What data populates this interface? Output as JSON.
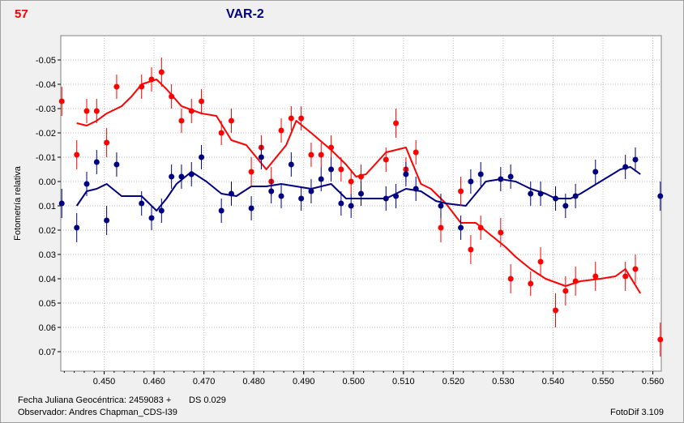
{
  "header": {
    "number": "57",
    "title": "VAR-2"
  },
  "footer": {
    "date_label": "Fecha Juliana Geocéntrica: 2459083 +",
    "ds_label": "DS 0.029",
    "observer_label": "Observador: Andres Chapman_CDS-I39",
    "software": "FotoDif 3.109"
  },
  "chart_data": {
    "type": "scatter",
    "title": "VAR-2",
    "xlabel": "",
    "ylabel": "Fotometría relativa",
    "xlim": [
      0.4413,
      0.5617
    ],
    "ylim": [
      0.078,
      -0.06
    ],
    "y_inverted": true,
    "grid": true,
    "x_ticks": [
      0.45,
      0.46,
      0.47,
      0.48,
      0.49,
      0.5,
      0.51,
      0.52,
      0.53,
      0.54,
      0.55,
      0.56
    ],
    "x_tick_labels": [
      "0.450",
      "0.460",
      "0.470",
      "0.480",
      "0.490",
      "0.500",
      "0.510",
      "0.520",
      "0.530",
      "0.540",
      "0.550",
      "0.560"
    ],
    "y_ticks": [
      -0.05,
      -0.04,
      -0.03,
      -0.02,
      -0.01,
      0.0,
      0.01,
      0.02,
      0.03,
      0.04,
      0.05,
      0.06,
      0.07
    ],
    "y_tick_labels": [
      "-0.05",
      "-0.04",
      "-0.03",
      "-0.02",
      "-0.01",
      "0.00",
      "0.01",
      "0.02",
      "0.03",
      "0.04",
      "0.05",
      "0.06",
      "0.07"
    ],
    "series": [
      {
        "color": "#ff0000",
        "points": [
          [
            0.4415,
            -0.033
          ],
          [
            0.4445,
            -0.011
          ],
          [
            0.4465,
            -0.029
          ],
          [
            0.4485,
            -0.029
          ],
          [
            0.4505,
            -0.016
          ],
          [
            0.4525,
            -0.039
          ],
          [
            0.4575,
            -0.039
          ],
          [
            0.4595,
            -0.042
          ],
          [
            0.4615,
            -0.045
          ],
          [
            0.4635,
            -0.035
          ],
          [
            0.4655,
            -0.025
          ],
          [
            0.4675,
            -0.029
          ],
          [
            0.4695,
            -0.033
          ],
          [
            0.4735,
            -0.02
          ],
          [
            0.4755,
            -0.025
          ],
          [
            0.4795,
            -0.004
          ],
          [
            0.4815,
            -0.014
          ],
          [
            0.4835,
            0.0
          ],
          [
            0.4855,
            -0.021
          ],
          [
            0.4875,
            -0.026
          ],
          [
            0.4895,
            -0.026
          ],
          [
            0.4915,
            -0.011
          ],
          [
            0.4935,
            -0.011
          ],
          [
            0.4955,
            -0.014
          ],
          [
            0.4975,
            -0.005
          ],
          [
            0.4995,
            0.0
          ],
          [
            0.5015,
            -0.002
          ],
          [
            0.5065,
            -0.009
          ],
          [
            0.5085,
            -0.024
          ],
          [
            0.5105,
            -0.005
          ],
          [
            0.5125,
            -0.012
          ],
          [
            0.5175,
            0.019
          ],
          [
            0.5215,
            0.004
          ],
          [
            0.5235,
            0.028
          ],
          [
            0.5255,
            0.019
          ],
          [
            0.5295,
            0.021
          ],
          [
            0.5315,
            0.04
          ],
          [
            0.5355,
            0.042
          ],
          [
            0.5375,
            0.033
          ],
          [
            0.5405,
            0.053
          ],
          [
            0.5425,
            0.045
          ],
          [
            0.5445,
            0.041
          ],
          [
            0.5485,
            0.039
          ],
          [
            0.5545,
            0.039
          ],
          [
            0.5565,
            0.036
          ],
          [
            0.5615,
            0.065
          ]
        ],
        "errors": [
          0.006,
          0.006,
          0.005,
          0.005,
          0.006,
          0.005,
          0.005,
          0.005,
          0.006,
          0.005,
          0.005,
          0.005,
          0.005,
          0.005,
          0.005,
          0.006,
          0.005,
          0.006,
          0.005,
          0.005,
          0.005,
          0.005,
          0.005,
          0.005,
          0.005,
          0.005,
          0.005,
          0.005,
          0.006,
          0.005,
          0.005,
          0.006,
          0.006,
          0.006,
          0.005,
          0.006,
          0.006,
          0.005,
          0.006,
          0.007,
          0.006,
          0.006,
          0.006,
          0.006,
          0.006,
          0.007
        ],
        "line": [
          [
            0.4445,
            -0.024
          ],
          [
            0.4465,
            -0.023
          ],
          [
            0.4485,
            -0.025
          ],
          [
            0.4505,
            -0.028
          ],
          [
            0.4535,
            -0.031
          ],
          [
            0.4555,
            -0.035
          ],
          [
            0.4575,
            -0.04
          ],
          [
            0.4605,
            -0.042
          ],
          [
            0.4625,
            -0.038
          ],
          [
            0.4655,
            -0.031
          ],
          [
            0.4695,
            -0.028
          ],
          [
            0.4725,
            -0.027
          ],
          [
            0.4755,
            -0.017
          ],
          [
            0.4785,
            -0.015
          ],
          [
            0.4825,
            -0.005
          ],
          [
            0.4865,
            -0.015
          ],
          [
            0.4885,
            -0.025
          ],
          [
            0.4915,
            -0.02
          ],
          [
            0.4955,
            -0.013
          ],
          [
            0.4985,
            -0.007
          ],
          [
            0.5005,
            -0.002
          ],
          [
            0.5025,
            -0.003
          ],
          [
            0.5065,
            -0.012
          ],
          [
            0.5105,
            -0.014
          ],
          [
            0.5135,
            0.001
          ],
          [
            0.5155,
            0.003
          ],
          [
            0.5185,
            0.009
          ],
          [
            0.5215,
            0.017
          ],
          [
            0.5245,
            0.017
          ],
          [
            0.5275,
            0.022
          ],
          [
            0.5305,
            0.027
          ],
          [
            0.5325,
            0.031
          ],
          [
            0.5355,
            0.036
          ],
          [
            0.5385,
            0.04
          ],
          [
            0.5425,
            0.043
          ],
          [
            0.5455,
            0.041
          ],
          [
            0.5495,
            0.04
          ],
          [
            0.5525,
            0.039
          ],
          [
            0.5545,
            0.036
          ],
          [
            0.5575,
            0.046
          ]
        ]
      },
      {
        "color": "#000080",
        "points": [
          [
            0.4415,
            0.009
          ],
          [
            0.4445,
            0.019
          ],
          [
            0.4465,
            0.001
          ],
          [
            0.4485,
            -0.008
          ],
          [
            0.4505,
            0.016
          ],
          [
            0.4525,
            -0.007
          ],
          [
            0.4575,
            0.009
          ],
          [
            0.4595,
            0.015
          ],
          [
            0.4615,
            0.012
          ],
          [
            0.4635,
            -0.002
          ],
          [
            0.4655,
            -0.002
          ],
          [
            0.4675,
            -0.003
          ],
          [
            0.4695,
            -0.01
          ],
          [
            0.4735,
            0.012
          ],
          [
            0.4755,
            0.005
          ],
          [
            0.4795,
            0.011
          ],
          [
            0.4815,
            -0.01
          ],
          [
            0.4835,
            0.004
          ],
          [
            0.4855,
            0.006
          ],
          [
            0.4875,
            -0.007
          ],
          [
            0.4895,
            0.007
          ],
          [
            0.4915,
            0.004
          ],
          [
            0.4935,
            -0.001
          ],
          [
            0.4955,
            -0.005
          ],
          [
            0.4975,
            0.009
          ],
          [
            0.4995,
            0.01
          ],
          [
            0.5015,
            0.005
          ],
          [
            0.5065,
            0.007
          ],
          [
            0.5085,
            0.006
          ],
          [
            0.5105,
            -0.003
          ],
          [
            0.5125,
            0.003
          ],
          [
            0.5175,
            0.01
          ],
          [
            0.5215,
            0.019
          ],
          [
            0.5235,
            0.0
          ],
          [
            0.5255,
            -0.003
          ],
          [
            0.5295,
            -0.001
          ],
          [
            0.5315,
            -0.002
          ],
          [
            0.5355,
            0.005
          ],
          [
            0.5375,
            0.005
          ],
          [
            0.5405,
            0.007
          ],
          [
            0.5425,
            0.01
          ],
          [
            0.5445,
            0.006
          ],
          [
            0.5485,
            -0.004
          ],
          [
            0.5545,
            -0.006
          ],
          [
            0.5565,
            -0.009
          ],
          [
            0.5615,
            0.006
          ]
        ],
        "errors": [
          0.006,
          0.006,
          0.005,
          0.005,
          0.006,
          0.005,
          0.005,
          0.005,
          0.005,
          0.005,
          0.005,
          0.005,
          0.005,
          0.005,
          0.005,
          0.005,
          0.005,
          0.005,
          0.005,
          0.005,
          0.005,
          0.005,
          0.005,
          0.005,
          0.005,
          0.005,
          0.005,
          0.005,
          0.005,
          0.005,
          0.005,
          0.005,
          0.005,
          0.005,
          0.005,
          0.005,
          0.005,
          0.005,
          0.005,
          0.005,
          0.005,
          0.005,
          0.005,
          0.005,
          0.005,
          0.006
        ],
        "line": [
          [
            0.4445,
            0.01
          ],
          [
            0.4465,
            0.004
          ],
          [
            0.4485,
            0.003
          ],
          [
            0.4505,
            0.001
          ],
          [
            0.4535,
            0.006
          ],
          [
            0.4555,
            0.006
          ],
          [
            0.4575,
            0.006
          ],
          [
            0.4605,
            0.012
          ],
          [
            0.4625,
            0.007
          ],
          [
            0.4645,
            0.001
          ],
          [
            0.4675,
            -0.004
          ],
          [
            0.4705,
            0.0
          ],
          [
            0.4735,
            0.005
          ],
          [
            0.4765,
            0.006
          ],
          [
            0.4795,
            0.002
          ],
          [
            0.4825,
            0.002
          ],
          [
            0.4855,
            0.001
          ],
          [
            0.4885,
            0.002
          ],
          [
            0.4915,
            0.003
          ],
          [
            0.4955,
            0.001
          ],
          [
            0.4985,
            0.007
          ],
          [
            0.5025,
            0.007
          ],
          [
            0.5065,
            0.007
          ],
          [
            0.5105,
            0.003
          ],
          [
            0.5135,
            0.004
          ],
          [
            0.5165,
            0.008
          ],
          [
            0.5185,
            0.009
          ],
          [
            0.5225,
            0.01
          ],
          [
            0.5245,
            0.005
          ],
          [
            0.5265,
            0.0
          ],
          [
            0.5295,
            -0.001
          ],
          [
            0.5325,
            0.0
          ],
          [
            0.5355,
            0.003
          ],
          [
            0.5385,
            0.005
          ],
          [
            0.5405,
            0.007
          ],
          [
            0.5435,
            0.007
          ],
          [
            0.5455,
            0.005
          ],
          [
            0.5495,
            0.0
          ],
          [
            0.5535,
            -0.005
          ],
          [
            0.5555,
            -0.006
          ],
          [
            0.5575,
            -0.003
          ]
        ]
      }
    ]
  }
}
